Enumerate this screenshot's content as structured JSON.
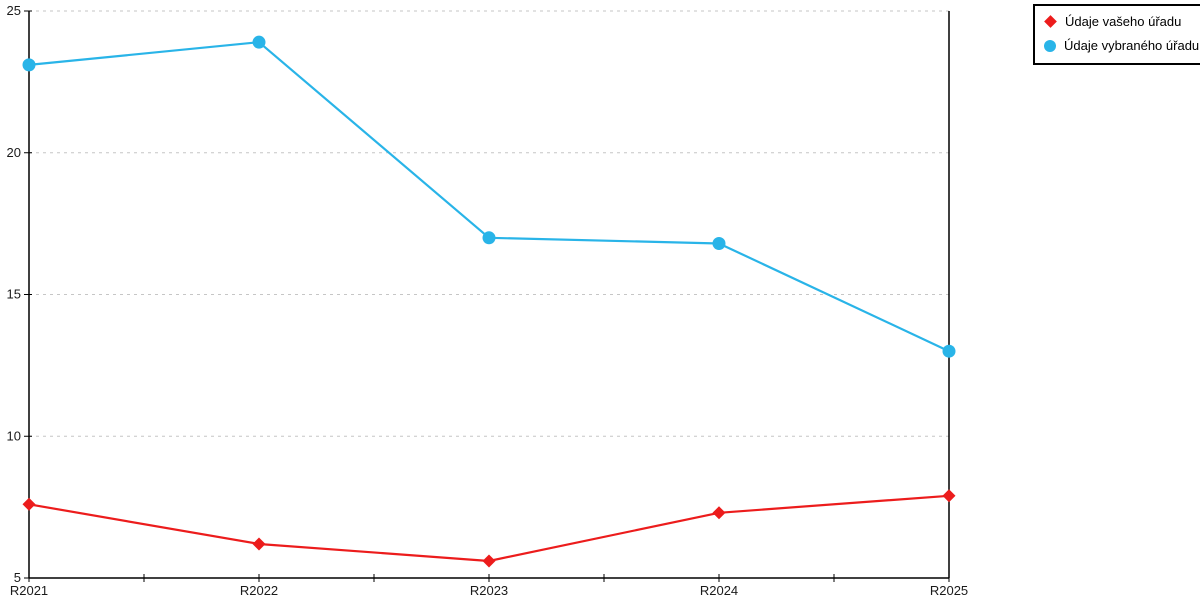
{
  "chart_data": {
    "type": "line",
    "title": "",
    "xlabel": "",
    "ylabel": "",
    "categories": [
      "R2021",
      "R2022",
      "R2023",
      "R2024",
      "R2025"
    ],
    "series": [
      {
        "name": "Údaje vašeho úřadu",
        "color": "#ec1c1c",
        "marker": "diamond",
        "values": [
          7.6,
          6.2,
          5.6,
          7.3,
          7.9
        ]
      },
      {
        "name": "Údaje vybraného úřadu",
        "color": "#29b4e8",
        "marker": "circle",
        "values": [
          23.1,
          23.9,
          17.0,
          16.8,
          13.0
        ]
      }
    ],
    "ylim": [
      5,
      25
    ],
    "yticks": [
      5,
      10,
      15,
      20,
      25
    ],
    "grid": "horizontal-dashed",
    "grid_color": "#c6c6c6",
    "axis_color": "#000000",
    "legend_position": "top-right"
  }
}
